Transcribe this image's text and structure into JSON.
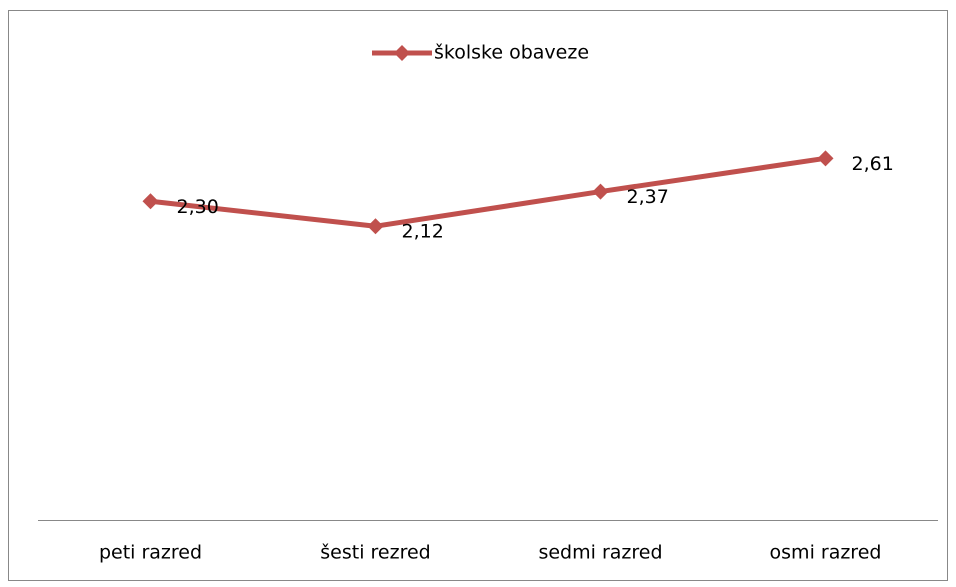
{
  "chart_data": {
    "type": "line",
    "categories": [
      "peti razred",
      "šesti rezred",
      "sedmi razred",
      "osmi razred"
    ],
    "series": [
      {
        "name": "školske obaveze",
        "color": "#c0504d",
        "values": [
          2.3,
          2.12,
          2.37,
          2.61
        ],
        "value_labels": [
          "2,30",
          "2,12",
          "2,37",
          "2,61"
        ]
      }
    ],
    "ylim": [
      0,
      3.5
    ],
    "grid": false,
    "legend": "top"
  }
}
